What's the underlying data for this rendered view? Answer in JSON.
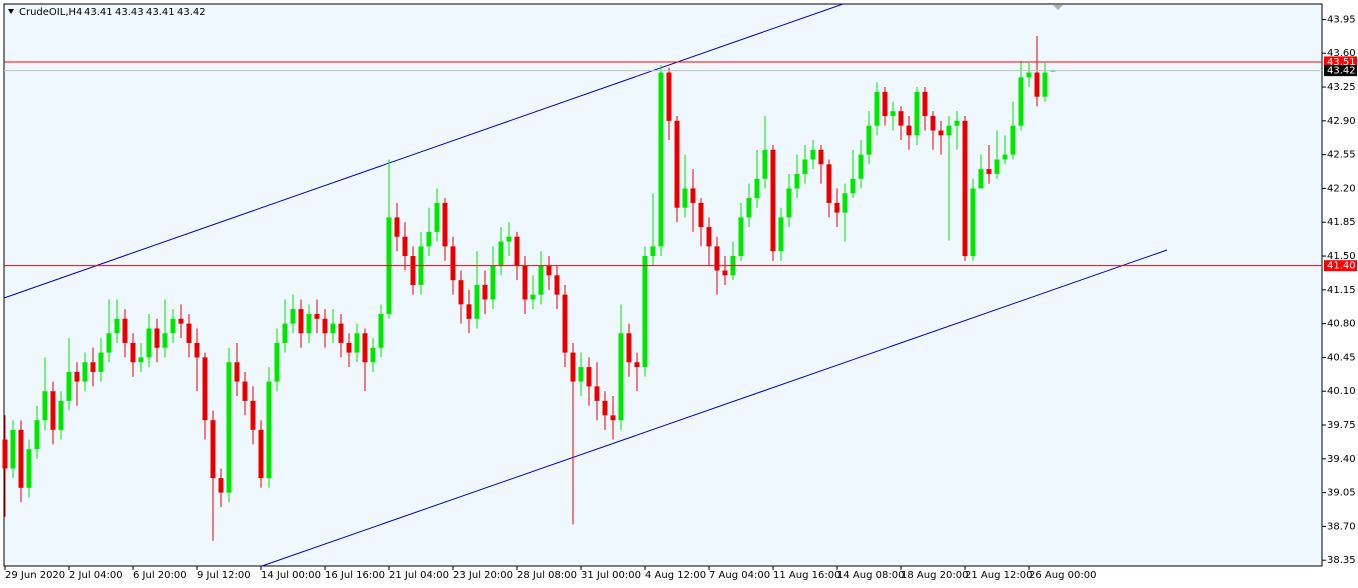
{
  "chart_data": {
    "type": "candlestick",
    "title": "CrudeOIL,H4",
    "xlim": [
      -0.125,
      164.625
    ],
    "xticks": [
      {
        "value": 0,
        "label": "29 Jun 2020"
      },
      {
        "value": 8,
        "label": "2 Jul 04:00"
      },
      {
        "value": 16,
        "label": "6 Jul 20:00"
      },
      {
        "value": 24,
        "label": "9 Jul 12:00"
      },
      {
        "value": 32,
        "label": "14 Jul 00:00"
      },
      {
        "value": 40,
        "label": "16 Jul 16:00"
      },
      {
        "value": 48,
        "label": "21 Jul 04:00"
      },
      {
        "value": 56,
        "label": "23 Jul 20:00"
      },
      {
        "value": 64,
        "label": "28 Jul 08:00"
      },
      {
        "value": 72,
        "label": "31 Jul 00:00"
      },
      {
        "value": 80,
        "label": "4 Aug 12:00"
      },
      {
        "value": 88,
        "label": "7 Aug 04:00"
      },
      {
        "value": 96,
        "label": "11 Aug 16:00"
      },
      {
        "value": 104,
        "label": "14 Aug 08:00"
      },
      {
        "value": 112,
        "label": "18 Aug 20:00"
      },
      {
        "value": 120,
        "label": "21 Aug 12:00"
      },
      {
        "value": 128,
        "label": "26 Aug 00:00"
      }
    ],
    "ylim": [
      38.29,
      44.11
    ],
    "yticks": [
      {
        "value": 38.35,
        "label": "38.35"
      },
      {
        "value": 38.7,
        "label": "38.70"
      },
      {
        "value": 39.05,
        "label": "39.05"
      },
      {
        "value": 39.4,
        "label": "39.40"
      },
      {
        "value": 39.75,
        "label": "39.75"
      },
      {
        "value": 40.1,
        "label": "40.10"
      },
      {
        "value": 40.45,
        "label": "40.45"
      },
      {
        "value": 40.8,
        "label": "40.80"
      },
      {
        "value": 41.15,
        "label": "41.15"
      },
      {
        "value": 41.5,
        "label": "41.50"
      },
      {
        "value": 41.85,
        "label": "41.85"
      },
      {
        "value": 42.2,
        "label": "42.20"
      },
      {
        "value": 42.55,
        "label": "42.55"
      },
      {
        "value": 42.9,
        "label": "42.90"
      },
      {
        "value": 43.25,
        "label": "43.25"
      },
      {
        "value": 43.6,
        "label": "43.60"
      },
      {
        "value": 43.95,
        "label": "43.95"
      }
    ],
    "up_color": "#00e600",
    "down_color": "#e60000",
    "open": [
      39.6,
      39.3,
      39.7,
      39.1,
      39.5,
      39.8,
      40.1,
      39.7,
      40.0,
      40.3,
      40.2,
      40.4,
      40.3,
      40.5,
      40.7,
      40.85,
      40.6,
      40.4,
      40.45,
      40.75,
      40.55,
      40.7,
      40.85,
      40.8,
      40.6,
      40.45,
      39.8,
      39.2,
      39.05,
      40.4,
      40.2,
      40.0,
      39.7,
      39.2,
      40.2,
      40.6,
      40.8,
      40.95,
      40.7,
      40.9,
      40.85,
      40.7,
      40.8,
      40.6,
      40.5,
      40.7,
      40.4,
      40.55,
      40.9,
      41.9,
      41.7,
      41.5,
      41.2,
      41.6,
      41.75,
      42.05,
      41.6,
      41.25,
      41.0,
      40.85,
      41.2,
      41.05,
      41.4,
      41.65,
      41.7,
      41.4,
      41.05,
      41.1,
      41.4,
      41.3,
      41.1,
      40.5,
      40.2,
      40.35,
      40.15,
      40.0,
      39.85,
      39.8,
      40.7,
      40.4,
      40.35,
      41.5,
      41.6,
      43.4,
      42.9,
      42.0,
      42.2,
      42.05,
      41.8,
      41.6,
      41.35,
      41.3,
      41.5,
      41.9,
      42.1,
      42.3,
      42.6,
      41.55,
      41.9,
      42.2,
      42.35,
      42.5,
      42.6,
      42.45,
      42.05,
      41.95,
      42.15,
      42.3,
      42.55,
      42.85,
      43.2,
      42.95,
      43.0,
      42.85,
      42.75,
      43.2,
      42.95,
      42.8,
      42.75,
      42.85,
      42.9,
      41.5,
      42.2,
      42.4,
      42.35,
      42.5,
      42.55,
      42.85,
      43.35,
      43.4,
      43.15,
      43.41
    ],
    "high": [
      39.85,
      39.8,
      39.8,
      39.6,
      39.95,
      40.45,
      40.2,
      40.1,
      40.65,
      40.4,
      40.5,
      40.55,
      40.65,
      41.05,
      41.05,
      40.95,
      40.7,
      40.6,
      40.9,
      40.85,
      41.05,
      40.95,
      41.0,
      40.9,
      40.75,
      40.5,
      39.9,
      39.3,
      40.55,
      40.6,
      40.3,
      40.15,
      39.8,
      40.35,
      40.75,
      41.05,
      41.1,
      41.05,
      41.0,
      41.05,
      40.95,
      40.95,
      40.9,
      40.7,
      40.8,
      40.75,
      40.65,
      41.0,
      42.5,
      42.05,
      41.85,
      41.6,
      41.75,
      42.0,
      42.2,
      42.1,
      41.7,
      41.35,
      41.15,
      41.55,
      41.35,
      41.6,
      41.8,
      41.85,
      41.75,
      41.5,
      41.3,
      41.55,
      41.5,
      41.4,
      41.2,
      40.6,
      40.5,
      40.45,
      40.4,
      40.1,
      40.05,
      41.0,
      40.8,
      40.5,
      41.6,
      42.15,
      43.48,
      43.45,
      42.95,
      42.55,
      42.4,
      42.1,
      41.9,
      41.7,
      41.5,
      41.65,
      42.05,
      42.25,
      42.6,
      42.95,
      42.65,
      42.0,
      42.35,
      42.55,
      42.65,
      42.7,
      42.65,
      42.5,
      42.2,
      42.25,
      42.6,
      42.7,
      43.0,
      43.3,
      43.25,
      43.1,
      43.05,
      42.95,
      43.25,
      43.25,
      43.0,
      42.9,
      42.95,
      43.0,
      42.95,
      42.3,
      42.55,
      42.65,
      42.8,
      42.75,
      43.1,
      43.52,
      43.5,
      43.78,
      43.5,
      43.43
    ],
    "low": [
      38.8,
      39.2,
      38.95,
      39.0,
      39.4,
      39.7,
      39.55,
      39.6,
      39.9,
      39.95,
      40.1,
      40.15,
      40.2,
      40.4,
      40.6,
      40.45,
      40.25,
      40.3,
      40.35,
      40.4,
      40.45,
      40.6,
      40.65,
      40.45,
      40.1,
      39.6,
      38.55,
      38.9,
      38.95,
      40.05,
      39.85,
      39.55,
      39.1,
      39.1,
      40.1,
      40.5,
      40.7,
      40.55,
      40.6,
      40.7,
      40.55,
      40.6,
      40.45,
      40.35,
      40.4,
      40.1,
      40.3,
      40.45,
      40.85,
      41.55,
      41.35,
      41.1,
      41.1,
      41.5,
      41.65,
      41.45,
      41.1,
      40.8,
      40.7,
      40.75,
      40.9,
      40.95,
      41.3,
      41.5,
      41.25,
      40.9,
      40.95,
      41.0,
      41.15,
      40.95,
      40.35,
      38.72,
      40.05,
      39.95,
      39.8,
      39.7,
      39.6,
      39.7,
      40.25,
      40.1,
      40.25,
      41.4,
      41.5,
      42.7,
      41.85,
      41.9,
      41.75,
      41.6,
      41.4,
      41.1,
      41.2,
      41.25,
      41.45,
      41.8,
      42.0,
      42.2,
      41.45,
      41.45,
      41.8,
      42.1,
      42.25,
      42.4,
      42.25,
      41.9,
      41.8,
      41.65,
      42.1,
      42.2,
      42.45,
      42.75,
      42.85,
      42.8,
      42.7,
      42.6,
      42.65,
      42.8,
      42.6,
      42.55,
      41.66,
      42.6,
      41.45,
      41.45,
      42.2,
      42.25,
      42.3,
      42.45,
      42.5,
      42.8,
      43.25,
      43.05,
      43.1,
      43.41
    ],
    "close": [
      39.3,
      39.7,
      39.1,
      39.5,
      39.8,
      40.1,
      39.7,
      40.0,
      40.3,
      40.2,
      40.4,
      40.3,
      40.5,
      40.7,
      40.85,
      40.6,
      40.4,
      40.45,
      40.75,
      40.55,
      40.7,
      40.85,
      40.8,
      40.6,
      40.45,
      39.8,
      39.2,
      39.05,
      40.4,
      40.2,
      40.0,
      39.7,
      39.2,
      40.2,
      40.6,
      40.8,
      40.95,
      40.7,
      40.9,
      40.85,
      40.7,
      40.8,
      40.6,
      40.5,
      40.7,
      40.4,
      40.55,
      40.9,
      41.9,
      41.7,
      41.5,
      41.2,
      41.6,
      41.75,
      42.05,
      41.6,
      41.25,
      41.0,
      40.85,
      41.2,
      41.05,
      41.4,
      41.65,
      41.7,
      41.4,
      41.05,
      41.1,
      41.4,
      41.3,
      41.1,
      40.5,
      40.2,
      40.35,
      40.15,
      40.0,
      39.85,
      39.8,
      40.7,
      40.4,
      40.35,
      41.5,
      41.6,
      43.4,
      42.9,
      42.0,
      42.2,
      42.05,
      41.8,
      41.6,
      41.35,
      41.3,
      41.5,
      41.9,
      42.1,
      42.3,
      42.6,
      41.55,
      41.9,
      42.2,
      42.35,
      42.5,
      42.6,
      42.45,
      42.05,
      41.95,
      42.15,
      42.3,
      42.55,
      42.85,
      43.2,
      42.95,
      43.0,
      42.85,
      42.75,
      43.2,
      42.95,
      42.8,
      42.75,
      42.85,
      42.9,
      41.5,
      42.2,
      42.4,
      42.35,
      42.5,
      42.55,
      42.85,
      43.35,
      43.4,
      43.15,
      43.4,
      43.42
    ],
    "price_lines": [
      {
        "value": 43.51,
        "color": "#ff0000"
      },
      {
        "value": 41.4,
        "label": "41.40",
        "color": "#ff0000"
      }
    ],
    "bid_line_color": "#c0c0c0"
  }
}
